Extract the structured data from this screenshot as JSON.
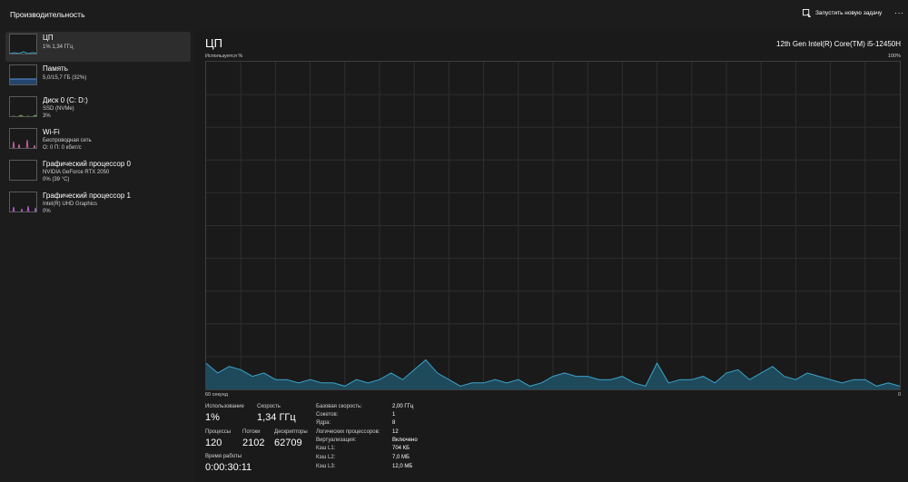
{
  "header": {
    "title": "Производительность",
    "run_task_label": "Запустить новую задачу",
    "more_label": "···"
  },
  "sidebar": {
    "items": [
      {
        "title": "ЦП",
        "lines": [
          "1% 1,34 ГГц"
        ],
        "color": "#3aa3c9"
      },
      {
        "title": "Память",
        "lines": [
          "5,0/15,7 ГБ (32%)"
        ],
        "color": "#5b8fd6"
      },
      {
        "title": "Диск 0 (C: D:)",
        "lines": [
          "SSD (NVMe)",
          "3%"
        ],
        "color": "#6fb84a"
      },
      {
        "title": "Wi-Fi",
        "lines": [
          "Беспроводная сеть",
          "О: 0 П: 0 кбит/с"
        ],
        "color": "#c864a8"
      },
      {
        "title": "Графический процессор 0",
        "lines": [
          "NVIDIA GeForce RTX 2050",
          "0% (39 °C)"
        ],
        "color": "#b35fd1"
      },
      {
        "title": "Графический процессор 1",
        "lines": [
          "Intel(R) UHD Graphics",
          "0%"
        ],
        "color": "#b35fd1"
      }
    ]
  },
  "main": {
    "title": "ЦП",
    "model": "12th Gen Intel(R) Core(TM) i5-12450H",
    "axis": {
      "top_left": "Используется %",
      "top_right": "100%",
      "bottom_left": "60 секунд",
      "bottom_right": "0"
    },
    "stats": {
      "usage_label": "Использование",
      "usage_value": "1%",
      "speed_label": "Скорость",
      "speed_value": "1,34 ГГц",
      "processes_label": "Процессы",
      "processes_value": "120",
      "threads_label": "Потоки",
      "threads_value": "2102",
      "handles_label": "Дескрипторы",
      "handles_value": "62709",
      "uptime_label": "Время работы",
      "uptime_value": "0:00:30:11"
    },
    "specs": [
      {
        "label": "Базовая скорость:",
        "value": "2,00 ГГц"
      },
      {
        "label": "Сокетов:",
        "value": "1"
      },
      {
        "label": "Ядра:",
        "value": "8"
      },
      {
        "label": "Логических процессоров:",
        "value": "12"
      },
      {
        "label": "Виртуализация:",
        "value": "Включено"
      },
      {
        "label": "Кэш L1:",
        "value": "704 КБ"
      },
      {
        "label": "Кэш L2:",
        "value": "7,0 МБ"
      },
      {
        "label": "Кэш L3:",
        "value": "12,0 МБ"
      }
    ]
  },
  "chart_data": {
    "type": "area",
    "ylim": [
      0,
      100
    ],
    "xlim": [
      60,
      0
    ],
    "grid": true,
    "color": "#3aa3c9",
    "x": [
      60,
      59,
      58,
      57,
      56,
      55,
      54,
      53,
      52,
      51,
      50,
      49,
      48,
      47,
      46,
      45,
      44,
      43,
      42,
      41,
      40,
      39,
      38,
      37,
      36,
      35,
      34,
      33,
      32,
      31,
      30,
      29,
      28,
      27,
      26,
      25,
      24,
      23,
      22,
      21,
      20,
      19,
      18,
      17,
      16,
      15,
      14,
      13,
      12,
      11,
      10,
      9,
      8,
      7,
      6,
      5,
      4,
      3,
      2,
      1,
      0
    ],
    "values": [
      8,
      5,
      7,
      6,
      4,
      5,
      3,
      3,
      2,
      3,
      2,
      2,
      1,
      3,
      2,
      3,
      5,
      3,
      6,
      9,
      5,
      3,
      1,
      2,
      2,
      3,
      2,
      3,
      1,
      2,
      4,
      5,
      4,
      4,
      3,
      3,
      4,
      2,
      1,
      8,
      2,
      3,
      3,
      4,
      2,
      5,
      6,
      3,
      5,
      7,
      4,
      3,
      5,
      4,
      3,
      2,
      3,
      3,
      1,
      2,
      1
    ]
  }
}
